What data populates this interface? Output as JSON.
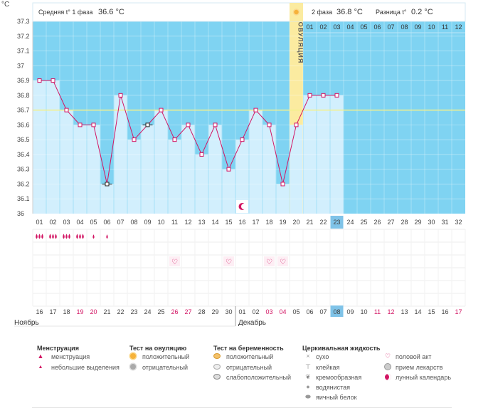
{
  "axis_unit": "°C",
  "header": {
    "phase1_label": "Средняя t° 1 фаза",
    "phase1_value": "36.6 °C",
    "phase2_label": "2 фаза",
    "phase2_value": "36.8 °C",
    "diff_label": "Разница t°",
    "diff_value": "0.2 °C"
  },
  "ovulation_label": "ОВУЛЯЦИЯ",
  "months": {
    "first": "Ноябрь",
    "second": "Декабрь"
  },
  "chart_data": {
    "type": "line",
    "ylim": [
      36.0,
      37.3
    ],
    "yticks": [
      "36",
      "36.1",
      "36.2",
      "36.3",
      "36.4",
      "36.5",
      "36.6",
      "36.7",
      "36.8",
      "36.9",
      "37",
      "37.1",
      "37.2",
      "37.3"
    ],
    "cycle_days": [
      "01",
      "02",
      "03",
      "04",
      "05",
      "06",
      "07",
      "08",
      "09",
      "10",
      "11",
      "12",
      "13",
      "14",
      "15",
      "16",
      "17",
      "18",
      "19",
      "20",
      "21",
      "22",
      "23",
      "24",
      "25",
      "26",
      "27",
      "28",
      "29",
      "30",
      "31",
      "32"
    ],
    "dates": [
      "16",
      "17",
      "18",
      "19",
      "20",
      "21",
      "22",
      "23",
      "24",
      "25",
      "26",
      "27",
      "28",
      "29",
      "30",
      "01",
      "02",
      "03",
      "04",
      "05",
      "06",
      "07",
      "08",
      "09",
      "10",
      "11",
      "12",
      "13",
      "14",
      "15",
      "16",
      "17"
    ],
    "red_date_indices": [
      3,
      4,
      10,
      11,
      17,
      18,
      25,
      26,
      31
    ],
    "temperatures": [
      36.9,
      36.9,
      36.7,
      36.6,
      36.6,
      36.2,
      36.8,
      36.5,
      36.6,
      36.7,
      36.5,
      36.6,
      36.4,
      36.6,
      36.3,
      36.5,
      36.7,
      36.6,
      36.2,
      36.6,
      36.8,
      36.8,
      36.8
    ],
    "excluded_point_indices": [
      5,
      8
    ],
    "coverline": 36.7,
    "ovulation_day_index": 19,
    "phase2_day_labels": [
      "01",
      "02",
      "03",
      "04",
      "05",
      "06",
      "07",
      "08",
      "09",
      "10",
      "11",
      "12"
    ],
    "current_day_index": 22,
    "moon_day_index": 15,
    "menstruation": [
      3,
      3,
      3,
      3,
      1,
      1
    ],
    "intercourse_day_indices": [
      10,
      14,
      17,
      18
    ]
  },
  "legend": {
    "menstruation": {
      "title": "Менструация",
      "items": [
        "менструация",
        "небольшие выделения"
      ]
    },
    "ovulation_test": {
      "title": "Тест на овуляцию",
      "items": [
        "положительный",
        "отрицательный"
      ]
    },
    "pregnancy_test": {
      "title": "Тест на беременность",
      "items": [
        "положительный",
        "отрицательный",
        "слабоположительный"
      ]
    },
    "cervical": {
      "title": "Церкивальная жидкость",
      "items": [
        "сухо",
        "клейкая",
        "кремообразная",
        "водянистая",
        "яичный белок"
      ]
    },
    "other": {
      "items": [
        "половой акт",
        "прием лекарств",
        "лунный календарь"
      ]
    }
  },
  "colors": {
    "bg_blue": "#7fd3f2",
    "bar": "#d2effd",
    "line": "#d21563",
    "coverline": "#f4f18a",
    "ovulation": "#fbeba0",
    "red_text": "#d21563",
    "current_day": "#7fc3e8"
  }
}
